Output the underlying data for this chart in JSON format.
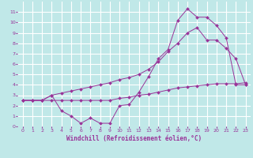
{
  "xlabel": "Windchill (Refroidissement éolien,°C)",
  "xlim": [
    -0.5,
    23.5
  ],
  "ylim": [
    0,
    12
  ],
  "xticks": [
    0,
    1,
    2,
    3,
    4,
    5,
    6,
    7,
    8,
    9,
    10,
    11,
    12,
    13,
    14,
    15,
    16,
    17,
    18,
    19,
    20,
    21,
    22,
    23
  ],
  "yticks": [
    0,
    1,
    2,
    3,
    4,
    5,
    6,
    7,
    8,
    9,
    10,
    11
  ],
  "background_color": "#c0e8e8",
  "grid_color": "#ffffff",
  "line_color": "#993399",
  "line1_x": [
    0,
    1,
    2,
    3,
    4,
    5,
    6,
    7,
    8,
    9,
    10,
    11,
    12,
    13,
    14,
    15,
    16,
    17,
    18,
    19,
    20,
    21,
    22,
    23
  ],
  "line1_y": [
    2.5,
    2.5,
    2.5,
    3.0,
    3.2,
    3.4,
    3.6,
    3.8,
    4.0,
    4.2,
    4.5,
    4.7,
    5.0,
    5.5,
    6.2,
    7.2,
    8.0,
    9.0,
    9.5,
    8.3,
    8.3,
    7.5,
    6.5,
    4.0
  ],
  "line2_x": [
    0,
    1,
    2,
    3,
    4,
    5,
    6,
    7,
    8,
    9,
    10,
    11,
    12,
    13,
    14,
    15,
    16,
    17,
    18,
    19,
    20,
    21,
    22,
    23
  ],
  "line2_y": [
    2.5,
    2.5,
    2.5,
    3.0,
    1.5,
    1.0,
    0.3,
    0.8,
    0.3,
    0.3,
    2.0,
    2.1,
    3.3,
    4.8,
    6.5,
    7.4,
    10.2,
    11.3,
    10.5,
    10.5,
    9.7,
    8.5,
    4.0,
    4.0
  ],
  "line3_x": [
    0,
    1,
    2,
    3,
    4,
    5,
    6,
    7,
    8,
    9,
    10,
    11,
    12,
    13,
    14,
    15,
    16,
    17,
    18,
    19,
    20,
    21,
    22,
    23
  ],
  "line3_y": [
    2.5,
    2.5,
    2.5,
    2.5,
    2.5,
    2.5,
    2.5,
    2.5,
    2.5,
    2.5,
    2.7,
    2.8,
    3.0,
    3.1,
    3.3,
    3.5,
    3.7,
    3.8,
    3.9,
    4.0,
    4.1,
    4.1,
    4.1,
    4.2
  ],
  "tick_labelsize": 4.5,
  "xlabel_fontsize": 5.5,
  "lw": 0.7,
  "ms": 2.0
}
